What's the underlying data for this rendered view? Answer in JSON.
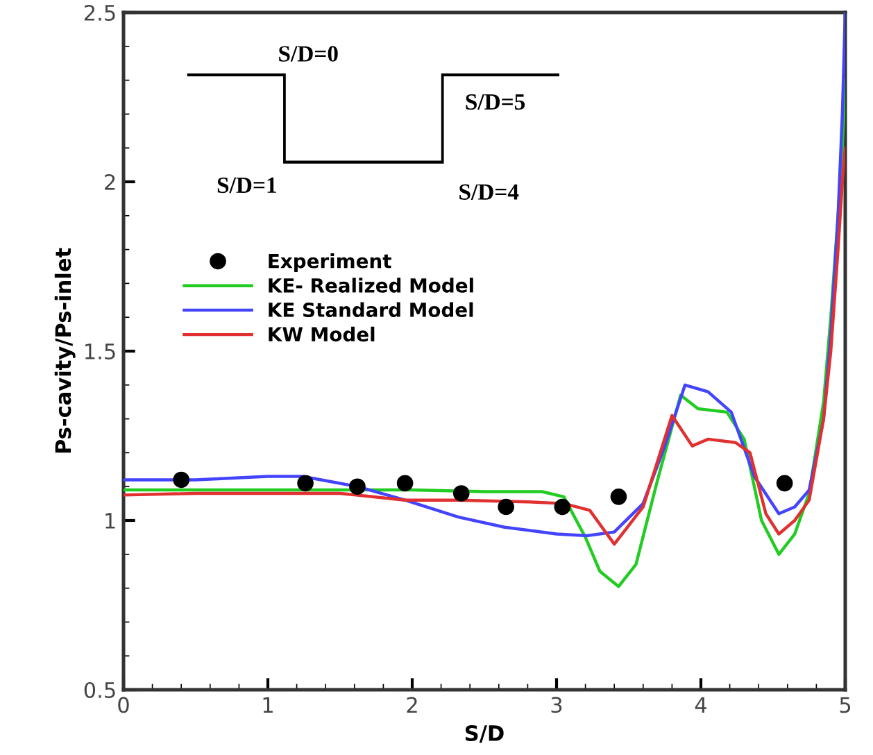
{
  "chart_data": {
    "type": "line",
    "xlabel": "S/D",
    "ylabel": "Ps-cavity/Ps-inlet",
    "xlim": [
      0,
      5
    ],
    "ylim": [
      0.5,
      2.5
    ],
    "xticks": [
      0,
      1,
      2,
      3,
      4,
      5
    ],
    "yticks": [
      0.5,
      1,
      1.5,
      2,
      2.5
    ],
    "legend": "left",
    "grid": false,
    "line_style": "solid",
    "annotations": [
      "S/D=0",
      "S/D=5",
      "S/D=1",
      "S/D=4"
    ],
    "series": [
      {
        "name": "Experiment",
        "type": "scatter",
        "marker": "circle",
        "color": "#000000",
        "x": [
          0.4,
          1.26,
          1.62,
          1.95,
          2.34,
          2.65,
          3.04,
          3.43,
          4.58
        ],
        "values": [
          1.12,
          1.11,
          1.1,
          1.11,
          1.08,
          1.04,
          1.04,
          1.07,
          1.11
        ]
      },
      {
        "name": "KE- Realized Model",
        "color": "#22cc22",
        "x": [
          0,
          0.5,
          1,
          1.5,
          2,
          2.5,
          2.9,
          3.05,
          3.2,
          3.3,
          3.43,
          3.55,
          3.7,
          3.86,
          3.98,
          4.18,
          4.3,
          4.42,
          4.54,
          4.65,
          4.75,
          4.85,
          4.9,
          4.95,
          4.98,
          5
        ],
        "values": [
          1.09,
          1.09,
          1.09,
          1.09,
          1.09,
          1.085,
          1.085,
          1.07,
          0.95,
          0.85,
          0.805,
          0.87,
          1.12,
          1.37,
          1.33,
          1.32,
          1.24,
          1.0,
          0.9,
          0.96,
          1.08,
          1.35,
          1.6,
          1.9,
          2.1,
          2.3
        ]
      },
      {
        "name": "KE Standard Model",
        "color": "#4444ff",
        "x": [
          0,
          0.5,
          1,
          1.24,
          1.62,
          1.95,
          2.32,
          2.64,
          3.0,
          3.21,
          3.4,
          3.6,
          3.75,
          3.89,
          4.05,
          4.21,
          4.37,
          4.54,
          4.65,
          4.75,
          4.85,
          4.9,
          4.95,
          4.98,
          5
        ],
        "values": [
          1.12,
          1.12,
          1.13,
          1.13,
          1.1,
          1.06,
          1.01,
          0.98,
          0.96,
          0.955,
          0.966,
          1.05,
          1.22,
          1.4,
          1.38,
          1.32,
          1.13,
          1.02,
          1.04,
          1.09,
          1.3,
          1.55,
          1.9,
          2.2,
          2.5
        ]
      },
      {
        "name": "KW Model",
        "color": "#e03030",
        "x": [
          0,
          0.5,
          1,
          1.5,
          1.95,
          2.32,
          2.8,
          3.05,
          3.23,
          3.4,
          3.6,
          3.8,
          3.94,
          4.05,
          4.24,
          4.34,
          4.45,
          4.54,
          4.65,
          4.75,
          4.85,
          4.9,
          4.95,
          4.98,
          5
        ],
        "values": [
          1.075,
          1.08,
          1.08,
          1.08,
          1.06,
          1.06,
          1.055,
          1.05,
          1.03,
          0.93,
          1.04,
          1.31,
          1.22,
          1.24,
          1.23,
          1.2,
          1.02,
          0.96,
          1.0,
          1.06,
          1.3,
          1.5,
          1.8,
          2.0,
          2.1
        ]
      }
    ]
  }
}
